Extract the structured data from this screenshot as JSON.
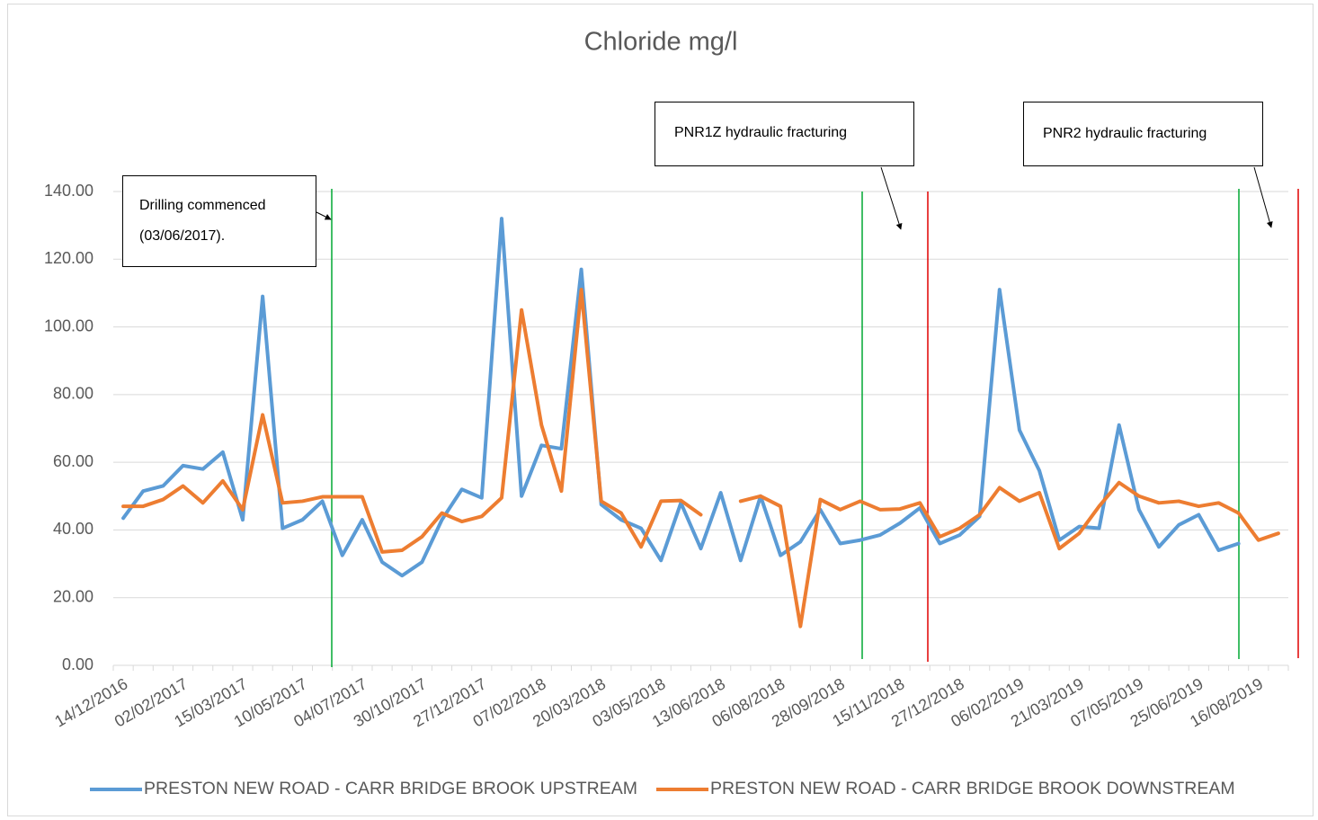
{
  "chart_data": {
    "type": "line",
    "title": "Chloride mg/l",
    "categories": [
      "14/12/2016",
      null,
      null,
      "02/02/2017",
      null,
      null,
      "15/03/2017",
      null,
      null,
      "10/05/2017",
      null,
      null,
      "04/07/2017",
      null,
      null,
      "30/10/2017",
      null,
      null,
      "27/12/2017",
      null,
      null,
      "07/02/2018",
      null,
      null,
      "20/03/2018",
      null,
      null,
      "03/05/2018",
      null,
      null,
      "13/06/2018",
      null,
      null,
      "06/08/2018",
      null,
      null,
      "28/09/2018",
      null,
      null,
      "15/11/2018",
      null,
      null,
      "27/12/2018",
      null,
      null,
      "06/02/2019",
      null,
      null,
      "21/03/2019",
      null,
      null,
      "07/05/2019",
      null,
      null,
      "25/06/2019",
      null,
      null,
      "16/08/2019",
      null
    ],
    "series": [
      {
        "name": "PRESTON NEW ROAD - CARR BRIDGE BROOK UPSTREAM",
        "color": "#5b9bd5",
        "values": [
          43.5,
          51.5,
          53,
          59,
          58,
          63,
          43,
          109,
          40.5,
          43,
          48.5,
          32.5,
          43,
          30.5,
          26.5,
          30.5,
          43,
          52,
          49.5,
          132,
          50,
          65,
          64,
          117,
          47.5,
          43,
          40.5,
          31,
          48,
          34.5,
          51,
          31,
          50,
          32.5,
          36.5,
          46,
          36,
          37,
          38.5,
          42,
          46.5,
          36,
          38.5,
          44,
          111,
          69.5,
          57.5,
          37,
          41,
          40.5,
          71,
          46,
          35,
          41.5,
          44.5,
          34,
          36,
          null,
          null
        ]
      },
      {
        "name": "PRESTON NEW ROAD - CARR BRIDGE BROOK DOWNSTREAM",
        "color": "#ed7d31",
        "values": [
          47,
          47,
          49,
          53,
          48,
          54.5,
          46,
          74,
          48,
          48.5,
          49.8,
          49.8,
          49.8,
          33.5,
          34,
          38,
          45,
          42.5,
          44,
          49.5,
          105,
          71,
          51.5,
          111,
          48.5,
          45,
          35,
          48.5,
          48.7,
          44.5,
          null,
          48.5,
          50,
          47,
          11.5,
          49,
          46,
          48.5,
          46,
          46.2,
          48,
          38,
          40.5,
          44.5,
          52.5,
          48.5,
          51,
          34.5,
          39,
          47,
          54,
          50,
          48,
          48.5,
          47,
          48,
          45,
          37,
          39
        ]
      }
    ],
    "ylim": [
      0,
      140
    ],
    "yticks": [
      {
        "value": 0,
        "label": "0.00"
      },
      {
        "value": 20,
        "label": "20.00"
      },
      {
        "value": 40,
        "label": "40.00"
      },
      {
        "value": 60,
        "label": "60.00"
      },
      {
        "value": 80,
        "label": "80.00"
      },
      {
        "value": 100,
        "label": "100.00"
      },
      {
        "value": 120,
        "label": "120.00"
      },
      {
        "value": 140,
        "label": "140.00"
      }
    ],
    "grid": true,
    "legend": "bottom",
    "annotations": [
      {
        "lines": [
          "Drilling commenced",
          "(03/06/2017)."
        ]
      },
      {
        "lines": [
          "PNR1Z hydraulic fracturing"
        ]
      },
      {
        "lines": [
          "PNR2 hydraulic fracturing"
        ]
      }
    ]
  }
}
